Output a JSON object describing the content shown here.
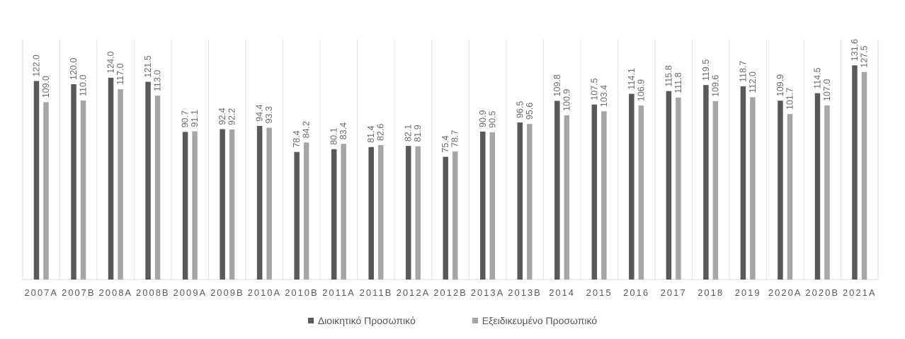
{
  "chart_data": {
    "type": "bar",
    "categories": [
      "2007A",
      "2007B",
      "2008A",
      "2008B",
      "2009A",
      "2009B",
      "2010A",
      "2010B",
      "2011A",
      "2011B",
      "2012A",
      "2012B",
      "2013A",
      "2013B",
      "2014",
      "2015",
      "2016",
      "2017",
      "2018",
      "2019",
      "2020A",
      "2020B",
      "2021A"
    ],
    "series": [
      {
        "name": "Διοικητικό Προσωπικό",
        "color": "#595959",
        "values": [
          122.0,
          120.0,
          124.0,
          121.5,
          90.7,
          92.4,
          94.4,
          78.4,
          80.1,
          81.4,
          82.1,
          75.4,
          90.9,
          96.5,
          109.8,
          107.5,
          114.1,
          115.8,
          119.5,
          118.7,
          109.9,
          114.5,
          131.6
        ]
      },
      {
        "name": "Εξειδικευμένο Προσωπικό",
        "color": "#a6a6a6",
        "values": [
          109.0,
          110.0,
          117.0,
          113.0,
          91.1,
          92.2,
          93.3,
          84.2,
          83.4,
          82.6,
          81.9,
          78.7,
          90.5,
          95.6,
          100.9,
          103.4,
          106.9,
          111.8,
          109.6,
          112.0,
          101.7,
          107.0,
          127.5
        ]
      }
    ],
    "ylim": [
      0,
      140
    ],
    "grid": "vertical separators",
    "legend_position": "bottom"
  }
}
